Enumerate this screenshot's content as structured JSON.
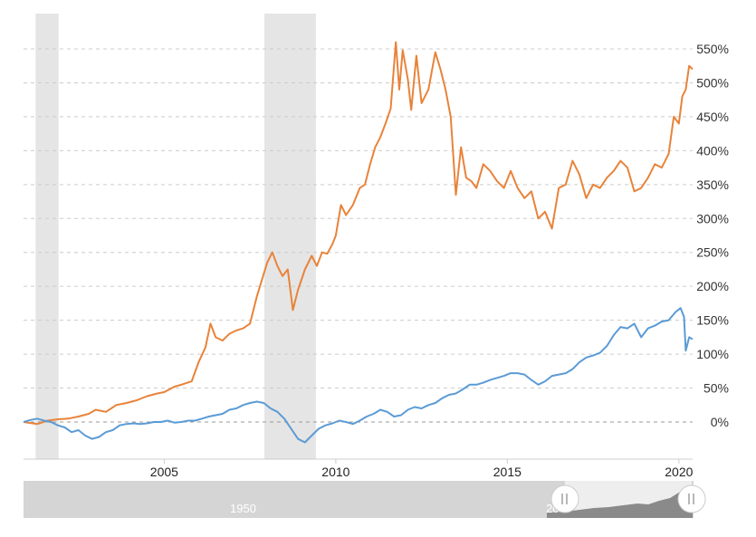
{
  "chart_data": {
    "type": "line",
    "title": "",
    "xlabel": "",
    "ylabel": "",
    "x_range": [
      2000.9,
      2020.4
    ],
    "ylim": [
      -60,
      580
    ],
    "y_ticks": [
      0,
      50,
      100,
      150,
      200,
      250,
      300,
      350,
      400,
      450,
      500,
      550
    ],
    "y_tick_labels": [
      "0%",
      "50%",
      "100%",
      "150%",
      "200%",
      "250%",
      "300%",
      "350%",
      "400%",
      "450%",
      "500%",
      "550%"
    ],
    "x_ticks": [
      2005,
      2010,
      2015,
      2020
    ],
    "x_tick_labels": [
      "2005",
      "2010",
      "2015",
      "2020"
    ],
    "grid": true,
    "legend": "none",
    "recession_bands": [
      [
        2001.25,
        2001.92
      ],
      [
        2007.92,
        2009.42
      ]
    ],
    "series": [
      {
        "color": "#e8833a",
        "points": [
          [
            2000.9,
            0
          ],
          [
            2001.3,
            -3
          ],
          [
            2001.6,
            2
          ],
          [
            2001.9,
            4
          ],
          [
            2002.2,
            5
          ],
          [
            2002.5,
            8
          ],
          [
            2002.8,
            12
          ],
          [
            2003.0,
            18
          ],
          [
            2003.3,
            15
          ],
          [
            2003.6,
            25
          ],
          [
            2003.9,
            28
          ],
          [
            2004.2,
            32
          ],
          [
            2004.5,
            38
          ],
          [
            2004.8,
            42
          ],
          [
            2005.0,
            44
          ],
          [
            2005.3,
            52
          ],
          [
            2005.5,
            55
          ],
          [
            2005.8,
            60
          ],
          [
            2006.0,
            88
          ],
          [
            2006.2,
            110
          ],
          [
            2006.35,
            145
          ],
          [
            2006.5,
            125
          ],
          [
            2006.7,
            120
          ],
          [
            2006.9,
            130
          ],
          [
            2007.1,
            135
          ],
          [
            2007.3,
            138
          ],
          [
            2007.5,
            145
          ],
          [
            2007.7,
            185
          ],
          [
            2007.85,
            210
          ],
          [
            2008.0,
            235
          ],
          [
            2008.15,
            250
          ],
          [
            2008.3,
            230
          ],
          [
            2008.45,
            215
          ],
          [
            2008.6,
            225
          ],
          [
            2008.75,
            165
          ],
          [
            2008.9,
            195
          ],
          [
            2009.1,
            225
          ],
          [
            2009.3,
            245
          ],
          [
            2009.45,
            230
          ],
          [
            2009.6,
            250
          ],
          [
            2009.75,
            248
          ],
          [
            2009.9,
            262
          ],
          [
            2010.0,
            275
          ],
          [
            2010.15,
            320
          ],
          [
            2010.3,
            305
          ],
          [
            2010.5,
            320
          ],
          [
            2010.7,
            345
          ],
          [
            2010.85,
            350
          ],
          [
            2011.0,
            380
          ],
          [
            2011.15,
            405
          ],
          [
            2011.3,
            420
          ],
          [
            2011.45,
            440
          ],
          [
            2011.6,
            462
          ],
          [
            2011.75,
            560
          ],
          [
            2011.85,
            490
          ],
          [
            2011.95,
            548
          ],
          [
            2012.1,
            505
          ],
          [
            2012.2,
            460
          ],
          [
            2012.35,
            540
          ],
          [
            2012.5,
            470
          ],
          [
            2012.7,
            490
          ],
          [
            2012.9,
            545
          ],
          [
            2013.05,
            520
          ],
          [
            2013.2,
            490
          ],
          [
            2013.35,
            450
          ],
          [
            2013.5,
            335
          ],
          [
            2013.65,
            405
          ],
          [
            2013.8,
            360
          ],
          [
            2013.95,
            355
          ],
          [
            2014.1,
            345
          ],
          [
            2014.3,
            380
          ],
          [
            2014.5,
            370
          ],
          [
            2014.7,
            355
          ],
          [
            2014.9,
            345
          ],
          [
            2015.1,
            370
          ],
          [
            2015.3,
            345
          ],
          [
            2015.5,
            330
          ],
          [
            2015.7,
            340
          ],
          [
            2015.9,
            300
          ],
          [
            2016.1,
            310
          ],
          [
            2016.3,
            285
          ],
          [
            2016.5,
            345
          ],
          [
            2016.7,
            350
          ],
          [
            2016.9,
            385
          ],
          [
            2017.1,
            365
          ],
          [
            2017.3,
            330
          ],
          [
            2017.5,
            350
          ],
          [
            2017.7,
            345
          ],
          [
            2017.9,
            360
          ],
          [
            2018.1,
            370
          ],
          [
            2018.3,
            385
          ],
          [
            2018.5,
            375
          ],
          [
            2018.7,
            340
          ],
          [
            2018.9,
            345
          ],
          [
            2019.1,
            360
          ],
          [
            2019.3,
            380
          ],
          [
            2019.5,
            375
          ],
          [
            2019.7,
            395
          ],
          [
            2019.85,
            450
          ],
          [
            2020.0,
            440
          ],
          [
            2020.1,
            480
          ],
          [
            2020.2,
            490
          ],
          [
            2020.3,
            525
          ],
          [
            2020.4,
            520
          ]
        ]
      },
      {
        "color": "#5b9bd5",
        "points": [
          [
            2000.9,
            0
          ],
          [
            2001.1,
            3
          ],
          [
            2001.3,
            5
          ],
          [
            2001.5,
            2
          ],
          [
            2001.7,
            0
          ],
          [
            2001.9,
            -5
          ],
          [
            2002.1,
            -8
          ],
          [
            2002.3,
            -15
          ],
          [
            2002.5,
            -12
          ],
          [
            2002.7,
            -20
          ],
          [
            2002.9,
            -25
          ],
          [
            2003.1,
            -22
          ],
          [
            2003.3,
            -15
          ],
          [
            2003.5,
            -12
          ],
          [
            2003.7,
            -5
          ],
          [
            2003.9,
            -3
          ],
          [
            2004.1,
            -2
          ],
          [
            2004.3,
            -3
          ],
          [
            2004.5,
            -2
          ],
          [
            2004.7,
            0
          ],
          [
            2004.9,
            0
          ],
          [
            2005.1,
            2
          ],
          [
            2005.3,
            -1
          ],
          [
            2005.5,
            0
          ],
          [
            2005.7,
            2
          ],
          [
            2005.9,
            2
          ],
          [
            2006.1,
            5
          ],
          [
            2006.3,
            8
          ],
          [
            2006.5,
            10
          ],
          [
            2006.7,
            12
          ],
          [
            2006.9,
            18
          ],
          [
            2007.1,
            20
          ],
          [
            2007.3,
            25
          ],
          [
            2007.5,
            28
          ],
          [
            2007.7,
            30
          ],
          [
            2007.9,
            28
          ],
          [
            2008.1,
            20
          ],
          [
            2008.3,
            15
          ],
          [
            2008.5,
            5
          ],
          [
            2008.7,
            -10
          ],
          [
            2008.9,
            -25
          ],
          [
            2009.1,
            -30
          ],
          [
            2009.3,
            -20
          ],
          [
            2009.5,
            -10
          ],
          [
            2009.7,
            -5
          ],
          [
            2009.9,
            -2
          ],
          [
            2010.1,
            2
          ],
          [
            2010.3,
            0
          ],
          [
            2010.5,
            -3
          ],
          [
            2010.7,
            2
          ],
          [
            2010.9,
            8
          ],
          [
            2011.1,
            12
          ],
          [
            2011.3,
            18
          ],
          [
            2011.5,
            15
          ],
          [
            2011.7,
            8
          ],
          [
            2011.9,
            10
          ],
          [
            2012.1,
            18
          ],
          [
            2012.3,
            22
          ],
          [
            2012.5,
            20
          ],
          [
            2012.7,
            25
          ],
          [
            2012.9,
            28
          ],
          [
            2013.1,
            35
          ],
          [
            2013.3,
            40
          ],
          [
            2013.5,
            42
          ],
          [
            2013.7,
            48
          ],
          [
            2013.9,
            55
          ],
          [
            2014.1,
            55
          ],
          [
            2014.3,
            58
          ],
          [
            2014.5,
            62
          ],
          [
            2014.7,
            65
          ],
          [
            2014.9,
            68
          ],
          [
            2015.1,
            72
          ],
          [
            2015.3,
            72
          ],
          [
            2015.5,
            70
          ],
          [
            2015.7,
            62
          ],
          [
            2015.9,
            55
          ],
          [
            2016.1,
            60
          ],
          [
            2016.3,
            68
          ],
          [
            2016.5,
            70
          ],
          [
            2016.7,
            72
          ],
          [
            2016.9,
            78
          ],
          [
            2017.1,
            88
          ],
          [
            2017.3,
            95
          ],
          [
            2017.5,
            98
          ],
          [
            2017.7,
            102
          ],
          [
            2017.9,
            112
          ],
          [
            2018.1,
            128
          ],
          [
            2018.3,
            140
          ],
          [
            2018.5,
            138
          ],
          [
            2018.7,
            145
          ],
          [
            2018.9,
            125
          ],
          [
            2019.1,
            138
          ],
          [
            2019.3,
            142
          ],
          [
            2019.5,
            148
          ],
          [
            2019.7,
            150
          ],
          [
            2019.9,
            162
          ],
          [
            2020.05,
            168
          ],
          [
            2020.15,
            155
          ],
          [
            2020.2,
            105
          ],
          [
            2020.3,
            125
          ],
          [
            2020.4,
            122
          ]
        ]
      }
    ]
  },
  "navigator": {
    "label": "1950",
    "label_partial": "20"
  }
}
